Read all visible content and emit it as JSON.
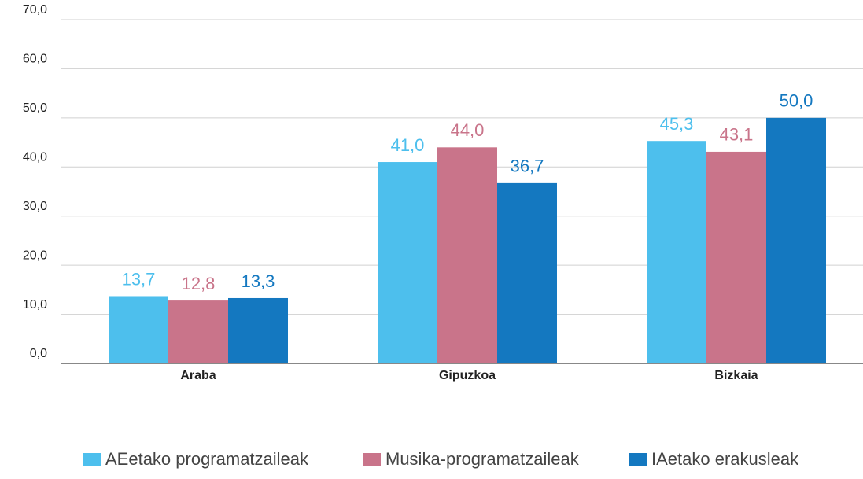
{
  "chart_data": {
    "type": "bar",
    "categories": [
      "Araba",
      "Gipuzkoa",
      "Bizkaia"
    ],
    "series": [
      {
        "name": "AEetako programatzaileak",
        "color": "#4dbfed",
        "values": [
          13.7,
          41.0,
          45.3
        ],
        "value_labels": [
          "13,7",
          "41,0",
          "45,3"
        ]
      },
      {
        "name": "Musika-programatzaileak",
        "color": "#c9748a",
        "values": [
          12.8,
          44.0,
          43.1
        ],
        "value_labels": [
          "12,8",
          "44,0",
          "43,1"
        ]
      },
      {
        "name": "IAetako erakusleak",
        "color": "#1478c0",
        "values": [
          13.3,
          36.7,
          50.0
        ],
        "value_labels": [
          "13,3",
          "36,7",
          "50,0"
        ]
      }
    ],
    "ylim": [
      0,
      70
    ],
    "yticks": [
      {
        "value": 0,
        "label": "0,0"
      },
      {
        "value": 10,
        "label": "10,0"
      },
      {
        "value": 20,
        "label": "20,0"
      },
      {
        "value": 30,
        "label": "30,0"
      },
      {
        "value": 40,
        "label": "40,0"
      },
      {
        "value": 50,
        "label": "50,0"
      },
      {
        "value": 60,
        "label": "60,0"
      },
      {
        "value": 70,
        "label": "70,0"
      }
    ],
    "grid": true,
    "legend": "bottom"
  }
}
